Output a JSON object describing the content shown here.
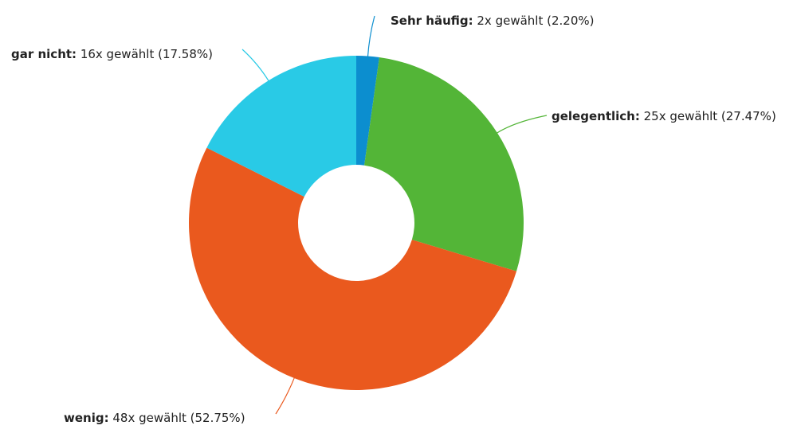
{
  "chart_data": {
    "type": "donut",
    "categories": [
      "Sehr häufig:",
      "gelegentlich:",
      "wenig:",
      "gar nicht:"
    ],
    "values": [
      2.2,
      27.47,
      52.75,
      17.58
    ],
    "value_labels": [
      "2x gewählt (2.20%)",
      "25x gewählt (27.47%)",
      "48x gewählt (52.75%)",
      "16x gewählt (17.58%)"
    ],
    "colors": [
      "#0c8ecf",
      "#53b537",
      "#ea591e",
      "#29cae6"
    ]
  }
}
